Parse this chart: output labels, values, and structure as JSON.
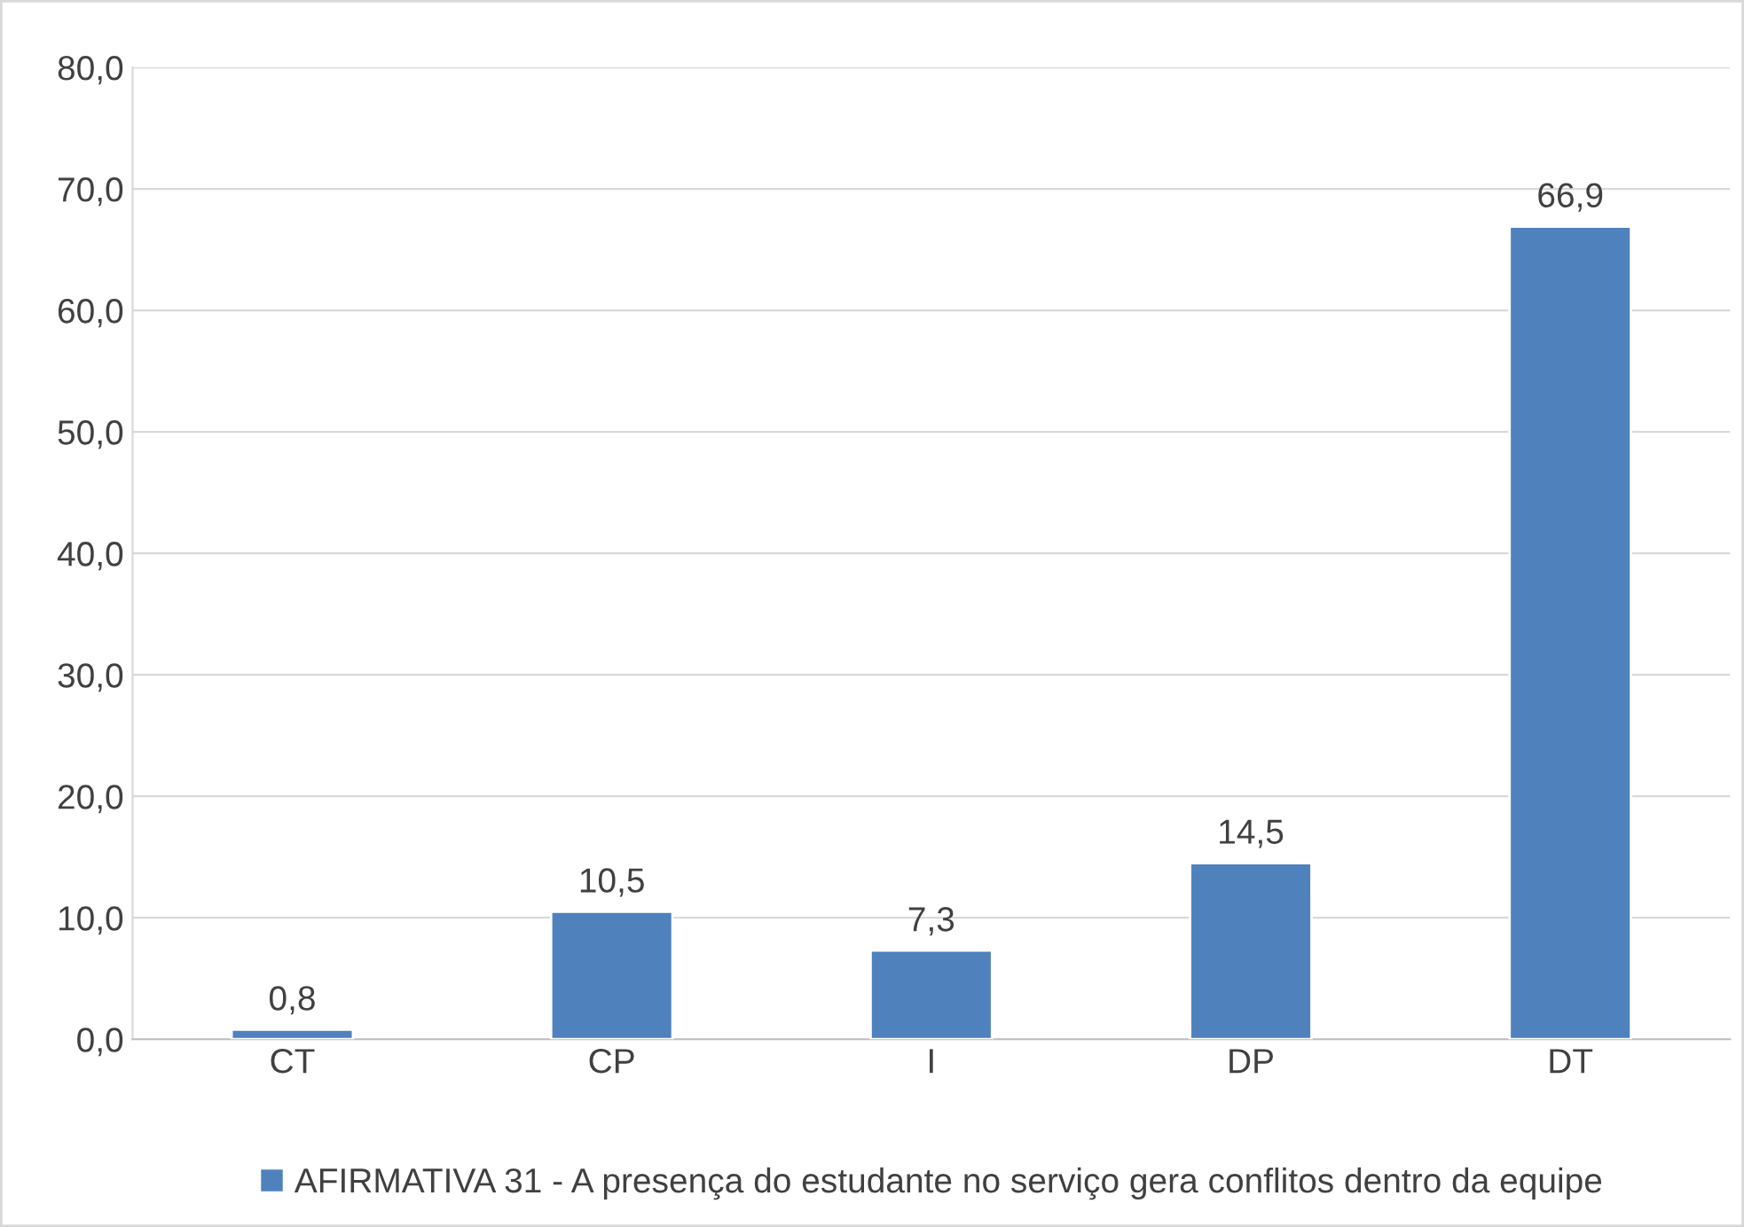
{
  "chart_data": {
    "type": "bar",
    "categories": [
      "CT",
      "CP",
      "I",
      "DP",
      "DT"
    ],
    "series": [
      {
        "name": "AFIRMATIVA 31 - A presença do estudante no serviço gera conflitos dentro da equipe",
        "color": "#4f81bd",
        "values": [
          0.8,
          10.5,
          7.3,
          14.5,
          66.9
        ],
        "value_labels": [
          "0,8",
          "10,5",
          "7,3",
          "14,5",
          "66,9"
        ]
      }
    ],
    "ylim": [
      0,
      80
    ],
    "yticks": [
      {
        "value": 0,
        "label": "0,0"
      },
      {
        "value": 10,
        "label": "10,0"
      },
      {
        "value": 20,
        "label": "20,0"
      },
      {
        "value": 30,
        "label": "30,0"
      },
      {
        "value": 40,
        "label": "40,0"
      },
      {
        "value": 50,
        "label": "50,0"
      },
      {
        "value": 60,
        "label": "60,0"
      },
      {
        "value": 70,
        "label": "70,0"
      },
      {
        "value": 80,
        "label": "80,0"
      }
    ],
    "grid": "y",
    "legend": "bottom"
  }
}
